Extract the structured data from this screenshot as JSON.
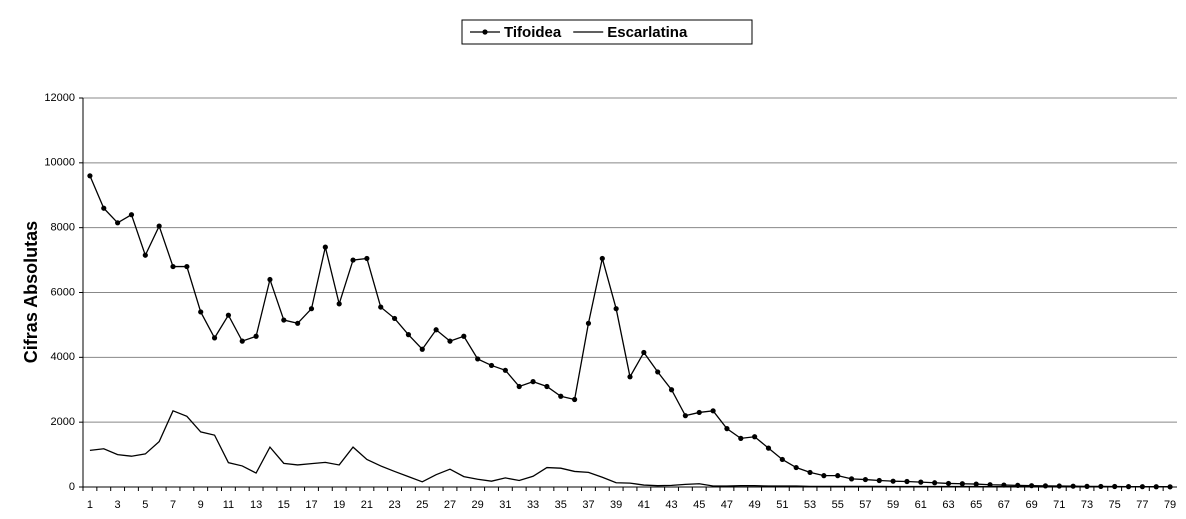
{
  "chart_data": {
    "type": "line",
    "y_label": "Cifras Absolutas",
    "categories": [
      1,
      null,
      3,
      null,
      5,
      null,
      7,
      null,
      9,
      null,
      11,
      null,
      13,
      null,
      15,
      null,
      17,
      null,
      19,
      null,
      21,
      null,
      23,
      null,
      25,
      null,
      27,
      null,
      29,
      null,
      31,
      null,
      33,
      null,
      35,
      null,
      37,
      null,
      39,
      null,
      41,
      null,
      43,
      null,
      45,
      null,
      47,
      null,
      49,
      null,
      51,
      null,
      53,
      null,
      55,
      null,
      57,
      null,
      59,
      null,
      61,
      null,
      63,
      null,
      65,
      null,
      67,
      null,
      69,
      null,
      71,
      null,
      73,
      null,
      75,
      null,
      77,
      null,
      79
    ],
    "series": [
      {
        "name": "Tifoidea",
        "color": "#000000",
        "marker": true,
        "values": [
          9600,
          8600,
          8150,
          8400,
          7150,
          8050,
          6800,
          6800,
          5400,
          4600,
          5300,
          4500,
          4650,
          6400,
          5150,
          5050,
          5500,
          7400,
          5650,
          7000,
          7050,
          5550,
          5200,
          4700,
          4250,
          4850,
          4500,
          4650,
          3950,
          3750,
          3600,
          3100,
          3250,
          3100,
          2800,
          2700,
          5050,
          7050,
          5500,
          3400,
          4150,
          3550,
          3000,
          2200,
          2300,
          2350,
          1800,
          1500,
          1550,
          1200,
          850,
          600,
          450,
          350,
          350,
          250,
          230,
          200,
          180,
          170,
          150,
          130,
          110,
          100,
          90,
          70,
          60,
          50,
          40,
          35,
          30,
          25,
          20,
          18,
          15,
          12,
          10,
          8,
          5
        ]
      },
      {
        "name": "Escarlatina",
        "color": "#000000",
        "marker": false,
        "values": [
          1130,
          1180,
          1000,
          950,
          1020,
          1400,
          2350,
          2180,
          1700,
          1600,
          750,
          650,
          430,
          1230,
          730,
          680,
          720,
          760,
          680,
          1230,
          850,
          650,
          480,
          320,
          160,
          380,
          550,
          320,
          240,
          180,
          280,
          200,
          330,
          600,
          580,
          480,
          450,
          300,
          130,
          120,
          60,
          40,
          50,
          80,
          100,
          30,
          30,
          40,
          40,
          30,
          30,
          30,
          20,
          20,
          20,
          20,
          20,
          20,
          15,
          15,
          15,
          15,
          15,
          15,
          15,
          10,
          10,
          10,
          10,
          10,
          10,
          10,
          10,
          10,
          10,
          10,
          10,
          10,
          10
        ]
      }
    ],
    "ylim": [
      0,
      12000
    ],
    "yticks": [
      0,
      2000,
      4000,
      6000,
      8000,
      10000,
      12000
    ],
    "grid": true,
    "legend": "top"
  }
}
